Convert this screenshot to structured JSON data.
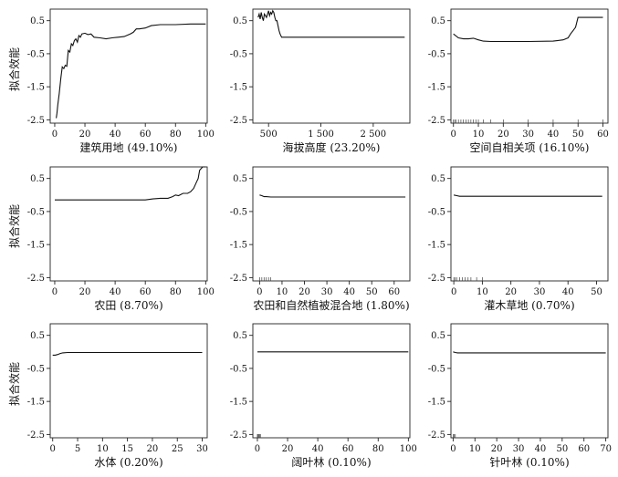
{
  "ylabel": "拟合效能",
  "chart_data": [
    {
      "type": "line",
      "xlabel": "建筑用地 (49.10%)",
      "xlim": [
        -3,
        101
      ],
      "ylim": [
        -2.6,
        0.85
      ],
      "xticks": [
        0,
        20,
        40,
        60,
        80,
        100
      ],
      "xticklabels": [
        "0",
        "20",
        "40",
        "60",
        "80",
        "100"
      ],
      "yticks": [
        0.5,
        -0.5,
        -1.5,
        -2.5
      ],
      "yticklabels": [
        "0.5",
        "-0.5",
        "-1.5",
        "-2.5"
      ],
      "series": [
        {
          "x": [
            1,
            1.5,
            2,
            3,
            4,
            5,
            6,
            7,
            8,
            9,
            10,
            11,
            12,
            13,
            14,
            15,
            16,
            17,
            18,
            20,
            22,
            24,
            26,
            30,
            34,
            38,
            42,
            46,
            50,
            52,
            54,
            56,
            60,
            64,
            70,
            80,
            90,
            100
          ],
          "y": [
            -2.45,
            -2.3,
            -2.05,
            -1.7,
            -1.25,
            -0.9,
            -0.95,
            -0.85,
            -0.88,
            -0.4,
            -0.45,
            -0.2,
            -0.25,
            -0.1,
            -0.05,
            -0.15,
            0.05,
            0.0,
            0.1,
            0.12,
            0.08,
            0.1,
            0.0,
            -0.02,
            -0.05,
            -0.02,
            0.0,
            0.02,
            0.1,
            0.15,
            0.25,
            0.25,
            0.28,
            0.35,
            0.38,
            0.38,
            0.4,
            0.4
          ]
        }
      ],
      "rug": []
    },
    {
      "type": "line",
      "xlabel": "海拔高度 (23.20%)",
      "xlim": [
        200,
        3200
      ],
      "ylim": [
        -2.6,
        0.85
      ],
      "xticks": [
        500,
        1500,
        2500
      ],
      "xticklabels": [
        "500",
        "1 500",
        "2 500"
      ],
      "yticks": [
        0.5,
        -0.5,
        -1.5,
        -2.5
      ],
      "yticklabels": [
        "0.5",
        "-0.5",
        "-1.5",
        "-2.5"
      ],
      "series": [
        {
          "x": [
            300,
            320,
            340,
            360,
            380,
            400,
            420,
            440,
            460,
            480,
            500,
            520,
            540,
            560,
            580,
            600,
            620,
            640,
            660,
            700,
            720,
            750,
            3100
          ],
          "y": [
            0.6,
            0.7,
            0.55,
            0.75,
            0.6,
            0.5,
            0.7,
            0.65,
            0.6,
            0.7,
            0.8,
            0.65,
            0.75,
            0.7,
            0.8,
            0.75,
            0.6,
            0.5,
            0.5,
            0.2,
            0.1,
            0.0,
            0.0
          ]
        }
      ],
      "rug": []
    },
    {
      "type": "line",
      "xlabel": "空间自相关项 (16.10%)",
      "xlim": [
        -1,
        62
      ],
      "ylim": [
        -2.6,
        0.85
      ],
      "xticks": [
        0,
        10,
        20,
        30,
        40,
        50,
        60
      ],
      "xticklabels": [
        "0",
        "10",
        "20",
        "30",
        "40",
        "50",
        "60"
      ],
      "yticks": [
        0.5,
        -0.5,
        -1.5,
        -2.5
      ],
      "yticklabels": [
        "0.5",
        "-0.5",
        "-1.5",
        "-2.5"
      ],
      "series": [
        {
          "x": [
            0,
            2,
            4,
            6,
            8,
            10,
            12,
            15,
            20,
            30,
            40,
            42,
            44,
            46,
            47,
            48,
            49,
            50,
            52,
            55,
            60
          ],
          "y": [
            0.1,
            -0.02,
            -0.05,
            -0.05,
            -0.03,
            -0.08,
            -0.12,
            -0.13,
            -0.13,
            -0.13,
            -0.12,
            -0.1,
            -0.08,
            -0.02,
            0.1,
            0.2,
            0.3,
            0.6,
            0.6,
            0.6,
            0.6
          ]
        }
      ],
      "rug": [
        0,
        0.5,
        1,
        2,
        3,
        4,
        5,
        6,
        7,
        8,
        9,
        10,
        12,
        15,
        20,
        30,
        40,
        50,
        60
      ]
    },
    {
      "type": "line",
      "xlabel": "农田 (8.70%)",
      "xlim": [
        -3,
        101
      ],
      "ylim": [
        -2.6,
        0.85
      ],
      "xticks": [
        0,
        20,
        40,
        60,
        80,
        100
      ],
      "xticklabels": [
        "0",
        "20",
        "40",
        "60",
        "80",
        "100"
      ],
      "yticks": [
        0.5,
        -0.5,
        -1.5,
        -2.5
      ],
      "yticklabels": [
        "0.5",
        "-0.5",
        "-1.5",
        "-2.5"
      ],
      "series": [
        {
          "x": [
            0,
            10,
            20,
            30,
            40,
            50,
            60,
            65,
            70,
            75,
            78,
            80,
            82,
            85,
            88,
            90,
            92,
            94,
            95,
            96,
            98,
            100
          ],
          "y": [
            -0.15,
            -0.15,
            -0.15,
            -0.15,
            -0.15,
            -0.15,
            -0.15,
            -0.12,
            -0.1,
            -0.1,
            -0.05,
            0.0,
            -0.02,
            0.05,
            0.05,
            0.1,
            0.2,
            0.4,
            0.5,
            0.75,
            0.85,
            0.85
          ]
        }
      ],
      "rug": []
    },
    {
      "type": "line",
      "xlabel": "农田和自然植被混合地 (1.80%)",
      "xlim": [
        -3,
        67
      ],
      "ylim": [
        -2.6,
        0.85
      ],
      "xticks": [
        0,
        10,
        20,
        30,
        40,
        50,
        60
      ],
      "xticklabels": [
        "0",
        "10",
        "20",
        "30",
        "40",
        "50",
        "60"
      ],
      "yticks": [
        0.5,
        -0.5,
        -1.5,
        -2.5
      ],
      "yticklabels": [
        "0.5",
        "-0.5",
        "-1.5",
        "-2.5"
      ],
      "series": [
        {
          "x": [
            0,
            1,
            2,
            3,
            5,
            10,
            20,
            40,
            65
          ],
          "y": [
            0.0,
            -0.02,
            -0.05,
            -0.05,
            -0.06,
            -0.06,
            -0.06,
            -0.06,
            -0.06
          ]
        }
      ],
      "rug": [
        0,
        1,
        2,
        3,
        4,
        5
      ]
    },
    {
      "type": "line",
      "xlabel": "灌木草地 (0.70%)",
      "xlim": [
        -1,
        54
      ],
      "ylim": [
        -2.6,
        0.85
      ],
      "xticks": [
        0,
        10,
        20,
        30,
        40,
        50
      ],
      "xticklabels": [
        "0",
        "10",
        "20",
        "30",
        "40",
        "50"
      ],
      "yticks": [
        0.5,
        -0.5,
        -1.5,
        -2.5
      ],
      "yticklabels": [
        "0.5",
        "-0.5",
        "-1.5",
        "-2.5"
      ],
      "series": [
        {
          "x": [
            0,
            1,
            2,
            5,
            10,
            20,
            30,
            40,
            52
          ],
          "y": [
            0.0,
            -0.02,
            -0.04,
            -0.04,
            -0.04,
            -0.04,
            -0.04,
            -0.04,
            -0.04
          ]
        }
      ],
      "rug": [
        0,
        0.5,
        1,
        2,
        3,
        4,
        5,
        6,
        8,
        10
      ]
    },
    {
      "type": "line",
      "xlabel": "水体 (0.20%)",
      "xlim": [
        -0.5,
        31
      ],
      "ylim": [
        -2.6,
        0.85
      ],
      "xticks": [
        0,
        5,
        10,
        15,
        20,
        25,
        30
      ],
      "xticklabels": [
        "0",
        "5",
        "10",
        "15",
        "20",
        "25",
        "30"
      ],
      "yticks": [
        0.5,
        -0.5,
        -1.5,
        -2.5
      ],
      "yticklabels": [
        "0.5",
        "-0.5",
        "-1.5",
        "-2.5"
      ],
      "series": [
        {
          "x": [
            0,
            0.5,
            1,
            1.5,
            2,
            3,
            5,
            10,
            20,
            30
          ],
          "y": [
            -0.1,
            -0.1,
            -0.08,
            -0.05,
            -0.03,
            -0.02,
            -0.02,
            -0.02,
            -0.02,
            -0.02
          ]
        }
      ],
      "rug": []
    },
    {
      "type": "line",
      "xlabel": "阔叶林 (0.10%)",
      "xlim": [
        -3,
        101
      ],
      "ylim": [
        -2.6,
        0.85
      ],
      "xticks": [
        0,
        20,
        40,
        60,
        80,
        100
      ],
      "xticklabels": [
        "0",
        "20",
        "40",
        "60",
        "80",
        "100"
      ],
      "yticks": [
        0.5,
        -0.5,
        -1.5,
        -2.5
      ],
      "yticklabels": [
        "0.5",
        "-0.5",
        "-1.5",
        "-2.5"
      ],
      "series": [
        {
          "x": [
            0,
            10,
            20,
            40,
            60,
            80,
            100
          ],
          "y": [
            0.0,
            0.0,
            0.0,
            0.0,
            0.0,
            0.0,
            0.0
          ]
        }
      ],
      "rug": [
        0,
        0.5,
        1,
        1.5,
        2
      ]
    },
    {
      "type": "line",
      "xlabel": "针叶林 (0.10%)",
      "xlim": [
        -1,
        71
      ],
      "ylim": [
        -2.6,
        0.85
      ],
      "xticks": [
        0,
        10,
        20,
        30,
        40,
        50,
        60,
        70
      ],
      "xticklabels": [
        "0",
        "10",
        "20",
        "30",
        "40",
        "50",
        "60",
        "70"
      ],
      "yticks": [
        0.5,
        -0.5,
        -1.5,
        -2.5
      ],
      "yticklabels": [
        "0.5",
        "-0.5",
        "-1.5",
        "-2.5"
      ],
      "series": [
        {
          "x": [
            0,
            1,
            2,
            3,
            10,
            30,
            50,
            70
          ],
          "y": [
            0.0,
            -0.02,
            -0.03,
            -0.03,
            -0.03,
            -0.03,
            -0.03,
            -0.03
          ]
        }
      ],
      "rug": [
        0,
        0.5,
        1
      ]
    }
  ]
}
